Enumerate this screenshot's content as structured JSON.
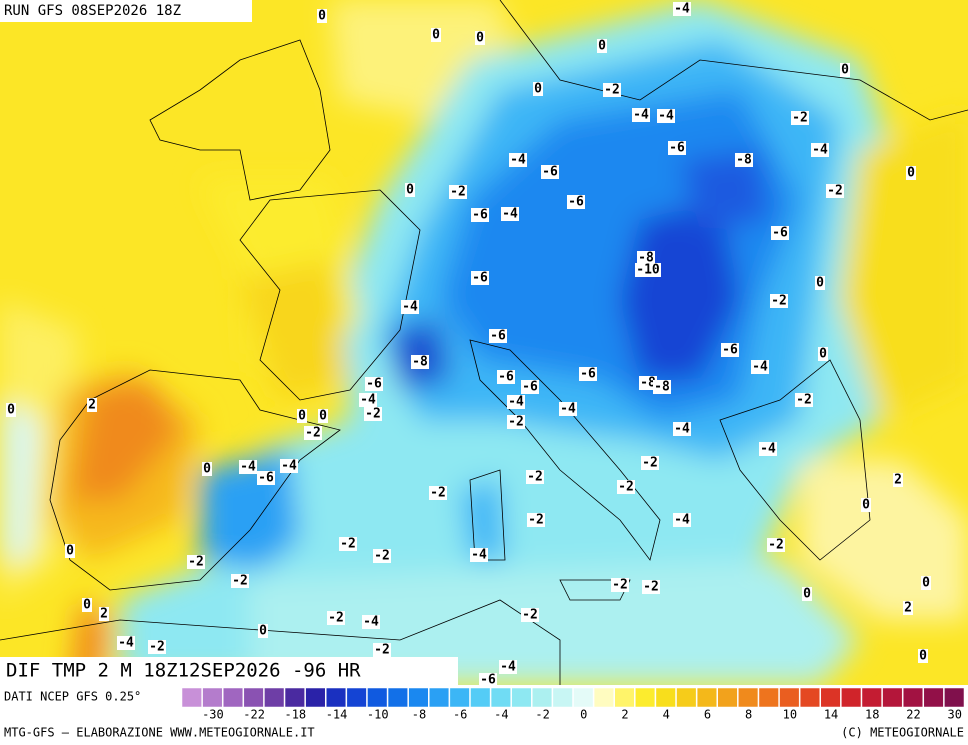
{
  "header": {
    "run": "RUN GFS 08SEP2026 18Z"
  },
  "map": {
    "title": "DIF TMP 2 M 18Z12SEP2026 -96 HR",
    "labels": [
      0,
      0,
      0,
      -4,
      0,
      0,
      0,
      -2,
      -4,
      -4,
      -2,
      -6,
      -4,
      -6,
      -8,
      -4,
      0,
      0,
      -2,
      -6,
      -6,
      -4,
      -2,
      -6,
      -8,
      -10,
      -6,
      0,
      -2,
      -4,
      -6,
      -6,
      0,
      -8,
      -4,
      -6,
      -6,
      -6,
      -6,
      -8,
      -8,
      -4,
      -2,
      -4,
      -4,
      -2,
      2,
      0,
      0,
      0,
      -2,
      -2,
      -4,
      -4,
      0,
      -4,
      -4,
      -6,
      -2,
      -2,
      -2,
      -2,
      2,
      0,
      -2,
      -4,
      0,
      -2,
      -2,
      -4,
      -2,
      -2,
      -2,
      -2,
      -2,
      0,
      0,
      0,
      2,
      2,
      -2,
      -4,
      -2,
      0,
      -4,
      -2,
      -2,
      0,
      -4,
      -6
    ]
  },
  "colorbar": {
    "source": "DATI NCEP GFS 0.25°",
    "labels": [
      -30,
      -22,
      -18,
      -14,
      -10,
      -8,
      -6,
      -4,
      -2,
      0,
      2,
      4,
      6,
      8,
      10,
      14,
      18,
      22,
      30
    ],
    "colors": [
      "#c890d8",
      "#b47ccc",
      "#a066c0",
      "#8a52b2",
      "#6e3ea6",
      "#4a2aa0",
      "#2a22a8",
      "#1a30c0",
      "#1444d4",
      "#105ae0",
      "#1270e8",
      "#1a88f0",
      "#2aa0f4",
      "#3cb6f6",
      "#54ccf6",
      "#70dcf4",
      "#8ee8f2",
      "#acf0f0",
      "#c8f6f4",
      "#e4fbf8",
      "#fffcc0",
      "#fff46a",
      "#fcec2e",
      "#f8de1c",
      "#f6cc1a",
      "#f4b81a",
      "#f2a21c",
      "#f08a1c",
      "#ee741e",
      "#ea5e20",
      "#e44822",
      "#dc3426",
      "#d0242a",
      "#c41c32",
      "#b4163a",
      "#a21242",
      "#921048",
      "#80104c"
    ]
  },
  "footer": {
    "credit": "MTG-GFS — ELABORAZIONE WWW.METEOGIORNALE.IT",
    "copyright": "(C) METEOGIORNALE"
  }
}
